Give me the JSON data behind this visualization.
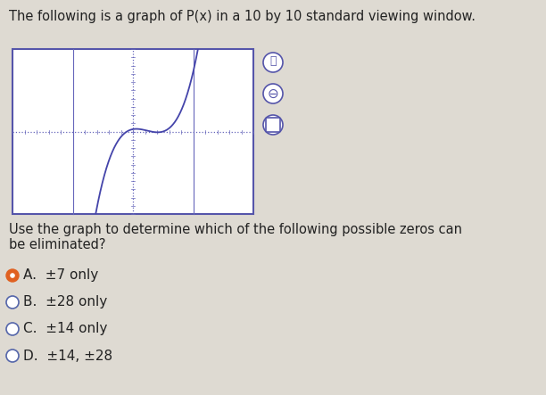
{
  "title_text": "The following is a graph of P(x) in a 10 by 10 standard viewing window.",
  "question_text": "Use the graph to determine which of the following possible zeros can\nbe eliminated?",
  "choices": [
    {
      "label": "A.",
      "text": "±7 only",
      "selected": true
    },
    {
      "label": "B.",
      "text": "±28 only",
      "selected": false
    },
    {
      "label": "C.",
      "text": "±14 only",
      "selected": false
    },
    {
      "label": "D.",
      "text": "±14, ±28",
      "selected": false
    }
  ],
  "bg_color": "#dedad2",
  "graph_bg": "#f0eee8",
  "graph_border_color": "#5555aa",
  "graph_line_color": "#6666bb",
  "curve_color": "#4444aa",
  "text_color": "#222222",
  "selected_color": "#e06020",
  "unselected_color": "#5566aa",
  "xlim": [
    -10,
    10
  ],
  "ylim": [
    -10,
    10
  ],
  "title_fontsize": 10.5,
  "choice_fontsize": 11,
  "question_fontsize": 10.5
}
